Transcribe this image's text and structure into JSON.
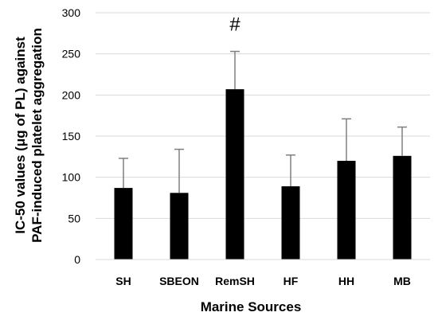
{
  "chart_data": {
    "type": "bar",
    "categories": [
      "SH",
      "SBEON",
      "RemSH",
      "HF",
      "HH",
      "MB"
    ],
    "values": [
      87,
      81,
      207,
      89,
      120,
      126
    ],
    "error_bars": [
      36,
      53,
      46,
      38,
      51,
      35
    ],
    "xlabel": "Marine Sources",
    "ylabel_lines": [
      "IC-50 values (μg of PL) against",
      "PAF-induced platelet aggregation"
    ],
    "ylim": [
      0,
      300
    ],
    "yticks": [
      0,
      50,
      100,
      150,
      200,
      250,
      300
    ],
    "grid": true,
    "bar_color": "#000000",
    "grid_color": "#d9d9d9",
    "annotations": [
      {
        "category": "RemSH",
        "text": "#"
      }
    ]
  }
}
